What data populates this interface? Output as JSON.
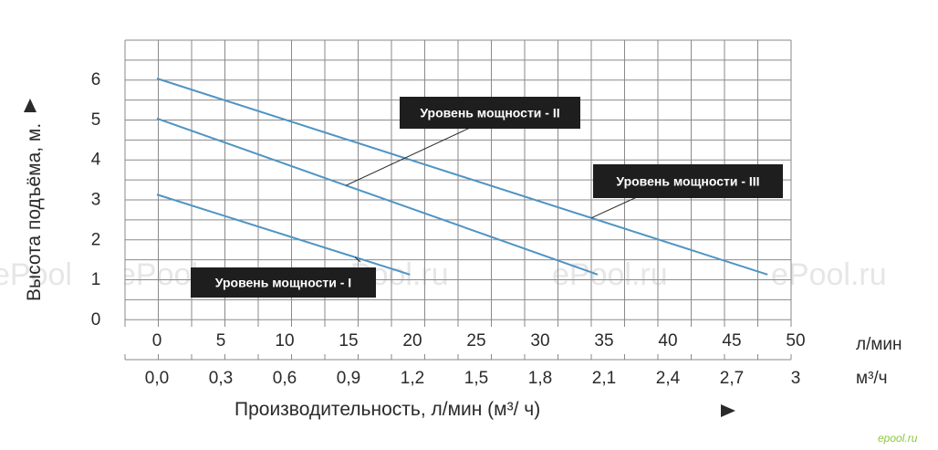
{
  "chart_data": {
    "type": "line",
    "ylabel": "Высота подъёма, м.",
    "xlabel": "Производительность, л/мин (м³/ ч)",
    "x_unit_primary": "л/мин",
    "x_unit_secondary": "м³/ч",
    "xlim": [
      0,
      50
    ],
    "ylim": [
      0,
      6
    ],
    "x_ticks": [
      "0",
      "5",
      "10",
      "15",
      "20",
      "25",
      "30",
      "35",
      "40",
      "45",
      "50"
    ],
    "x_ticks_secondary": [
      "0,0",
      "0,3",
      "0,6",
      "0,9",
      "1,2",
      "1,5",
      "1,8",
      "2,1",
      "2,4",
      "2,7",
      "3"
    ],
    "y_ticks": [
      "0",
      "1",
      "2",
      "3",
      "4",
      "5",
      "6"
    ],
    "grid": true,
    "line_color": "#4f94c4",
    "series": [
      {
        "name": "Уровень мощности - I",
        "x": [
          0,
          19.8
        ],
        "y": [
          3.1,
          1.1
        ]
      },
      {
        "name": "Уровень мощности - II",
        "x": [
          0,
          34.5
        ],
        "y": [
          5.0,
          1.1
        ]
      },
      {
        "name": "Уровень мощности - III",
        "x": [
          0,
          47.8
        ],
        "y": [
          6.0,
          1.1
        ]
      }
    ]
  },
  "watermark_text": "ePool.ru",
  "brand_mark": "epool.ru"
}
